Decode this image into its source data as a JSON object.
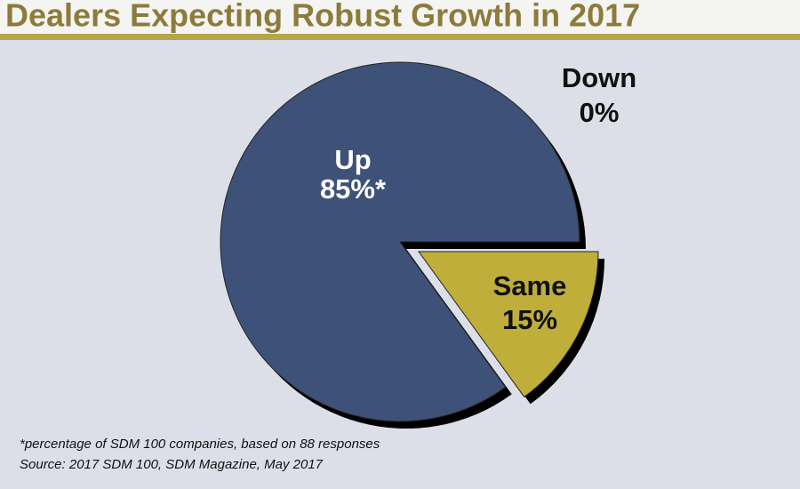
{
  "chart_data": {
    "type": "pie",
    "title": "Dealers Expecting Robust Growth in 2017",
    "categories": [
      "Up",
      "Same",
      "Down"
    ],
    "values": [
      85,
      15,
      0
    ],
    "value_labels": [
      "85%*",
      "15%",
      "0%"
    ],
    "colors": [
      "#3e5178",
      "#bfae3a",
      "#8a8a8a"
    ],
    "notes": [
      "*percentage of SDM 100 companies, based on 88 responses",
      "Source: 2017 SDM 100, SDM Magazine, May 2017"
    ]
  }
}
